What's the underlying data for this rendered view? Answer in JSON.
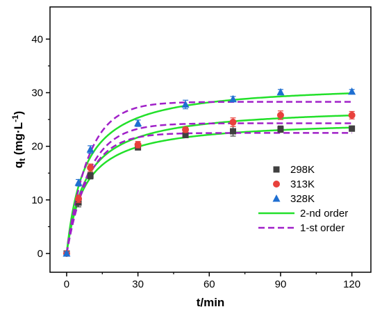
{
  "chart_data": {
    "type": "scatter",
    "xlabel": "t/min",
    "ylabel": {
      "main": "q",
      "sub": "t",
      "unit_pre": " (mg·L",
      "sup": "-1",
      "unit_post": ")"
    },
    "xlim": [
      -7,
      128
    ],
    "ylim": [
      -3.5,
      46
    ],
    "xticks": [
      0,
      30,
      60,
      90,
      120
    ],
    "yticks": [
      0,
      10,
      20,
      30,
      40
    ],
    "grid": false,
    "legend_position": "bottom-right",
    "series": [
      {
        "name": "298K",
        "kind": "points",
        "marker": "square",
        "color": "#404040",
        "x": [
          0,
          5,
          10,
          30,
          50,
          70,
          90,
          120
        ],
        "y": [
          0,
          9.5,
          14.5,
          19.8,
          22.1,
          22.8,
          23.2,
          23.3
        ],
        "err": [
          0.3,
          0.8,
          0.6,
          0.5,
          0.4,
          0.9,
          0.6,
          0.5
        ]
      },
      {
        "name": "313K",
        "kind": "points",
        "marker": "circle",
        "color": "#e8413c",
        "x": [
          0,
          5,
          10,
          30,
          50,
          70,
          90,
          120
        ],
        "y": [
          0,
          10.2,
          16.0,
          20.3,
          23.1,
          24.5,
          25.8,
          25.8
        ],
        "err": [
          0.3,
          0.7,
          0.7,
          0.6,
          0.5,
          0.8,
          0.8,
          0.7
        ]
      },
      {
        "name": "328K",
        "kind": "points",
        "marker": "triangle",
        "color": "#1f6fd1",
        "x": [
          0,
          5,
          10,
          30,
          50,
          70,
          90,
          120
        ],
        "y": [
          0,
          13.2,
          19.4,
          24.3,
          27.8,
          28.8,
          30.1,
          30.2
        ],
        "err": [
          0.3,
          0.6,
          0.7,
          0.6,
          0.8,
          0.5,
          0.5,
          0.4
        ]
      },
      {
        "name": "2-nd order",
        "kind": "curve",
        "model": "second-order",
        "color": "#22e02a",
        "fits": [
          {
            "qe": 25.0,
            "k": 0.0052
          },
          {
            "qe": 27.5,
            "k": 0.0045
          },
          {
            "qe": 31.8,
            "k": 0.0041
          }
        ]
      },
      {
        "name": "1-st order",
        "kind": "curve",
        "model": "first-order",
        "color": "#a020c8",
        "fits": [
          {
            "qe": 22.5,
            "k": 0.11
          },
          {
            "qe": 24.3,
            "k": 0.105
          },
          {
            "qe": 28.3,
            "k": 0.11
          }
        ]
      }
    ]
  }
}
